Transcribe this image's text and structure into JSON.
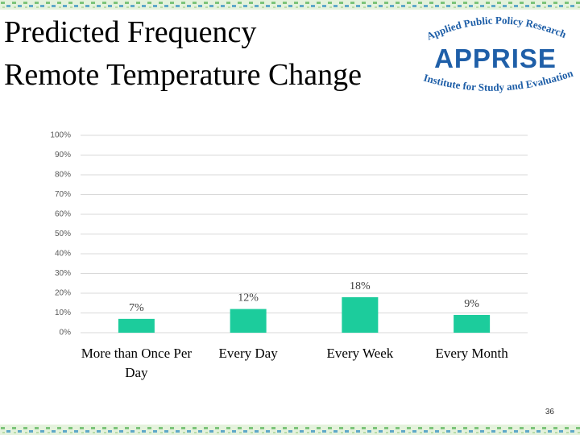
{
  "chart_data": {
    "type": "bar",
    "title": "Predicted Frequency",
    "subtitle": "Remote Temperature Change",
    "categories": [
      "More than Once Per Day",
      "Every Day",
      "Every Week",
      "Every Month"
    ],
    "values": [
      7,
      12,
      18,
      9
    ],
    "value_labels": [
      "7%",
      "12%",
      "18%",
      "9%"
    ],
    "color": "#1ccc9c",
    "ylim": [
      0,
      100
    ],
    "yticks": [
      {
        "value": 0,
        "label": "0%"
      },
      {
        "value": 10,
        "label": "10%"
      },
      {
        "value": 20,
        "label": "20%"
      },
      {
        "value": 30,
        "label": "30%"
      },
      {
        "value": 40,
        "label": "40%"
      },
      {
        "value": 50,
        "label": "50%"
      },
      {
        "value": 60,
        "label": "60%"
      },
      {
        "value": 70,
        "label": "70%"
      },
      {
        "value": 80,
        "label": "80%"
      },
      {
        "value": 90,
        "label": "90%"
      },
      {
        "value": 100,
        "label": "100%"
      }
    ],
    "grid": true
  },
  "logo": {
    "top": "Applied Public Policy Research",
    "name": "APPRISE",
    "bottom": "Institute for Study and Evaluation"
  },
  "page_number": "36"
}
